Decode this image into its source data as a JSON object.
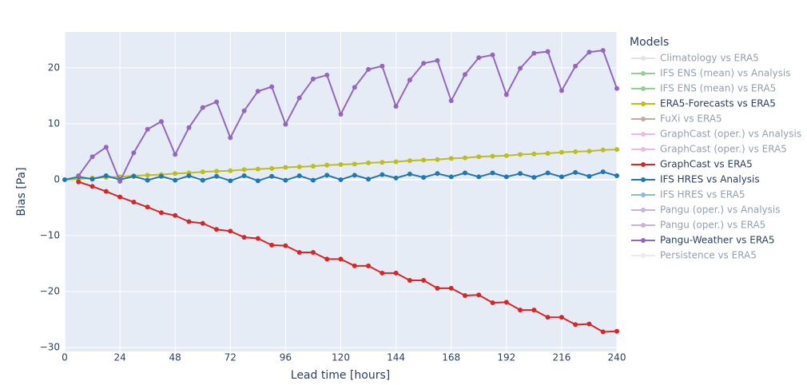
{
  "chart_data": {
    "type": "line",
    "xlabel": "Lead time [hours]",
    "ylabel": "Bias [Pa]",
    "legend_title": "Models",
    "legend_position": "right",
    "grid": true,
    "x": [
      0,
      6,
      12,
      18,
      24,
      30,
      36,
      42,
      48,
      54,
      60,
      66,
      72,
      78,
      84,
      90,
      96,
      102,
      108,
      114,
      120,
      126,
      132,
      138,
      144,
      150,
      156,
      162,
      168,
      174,
      180,
      186,
      192,
      198,
      204,
      210,
      216,
      222,
      228,
      234,
      240
    ],
    "xlim": [
      0,
      240
    ],
    "xticks": [
      0,
      24,
      48,
      72,
      96,
      120,
      144,
      168,
      192,
      216,
      240
    ],
    "ylim": [
      -30.7,
      26.4
    ],
    "yticks": [
      {
        "value": -30,
        "label": "−30"
      },
      {
        "value": -20,
        "label": "−20"
      },
      {
        "value": -10,
        "label": "−10"
      },
      0,
      10,
      20
    ],
    "series": [
      {
        "name": "Climatology vs ERA5",
        "color": "#c7c7c7",
        "visible": false
      },
      {
        "name": "IFS ENS (mean) vs Analysis",
        "color": "#2ca02c",
        "visible": false
      },
      {
        "name": "IFS ENS (mean) vs ERA5",
        "color": "#2ca02c",
        "visible": false
      },
      {
        "name": "ERA5-Forecasts vs ERA5",
        "color": "#bcbd22",
        "visible": true,
        "values": [
          0,
          0.1,
          0.3,
          0.4,
          0.5,
          0.7,
          0.8,
          0.9,
          1.1,
          1.2,
          1.4,
          1.5,
          1.6,
          1.8,
          1.9,
          2.0,
          2.2,
          2.3,
          2.4,
          2.6,
          2.7,
          2.8,
          3.0,
          3.1,
          3.2,
          3.4,
          3.5,
          3.6,
          3.8,
          3.9,
          4.1,
          4.2,
          4.3,
          4.5,
          4.6,
          4.7,
          4.9,
          5.0,
          5.1,
          5.3,
          5.4
        ]
      },
      {
        "name": "FuXi vs ERA5",
        "color": "#8c564b",
        "visible": false
      },
      {
        "name": "GraphCast (oper.) vs Analysis",
        "color": "#e377c2",
        "visible": false
      },
      {
        "name": "GraphCast (oper.) vs ERA5",
        "color": "#e377c2",
        "visible": false
      },
      {
        "name": "GraphCast vs ERA5",
        "color": "#d62728",
        "visible": true,
        "values": [
          null,
          -0.4,
          -1.2,
          -2.1,
          -3.1,
          -4.0,
          -4.9,
          -5.9,
          -6.4,
          -7.5,
          -7.8,
          -8.9,
          -9.2,
          -10.3,
          -10.5,
          -11.7,
          -11.8,
          -13.0,
          -13.0,
          -14.2,
          -14.2,
          -15.4,
          -15.4,
          -16.7,
          -16.7,
          -18.0,
          -18.0,
          -19.4,
          -19.4,
          -20.7,
          -20.6,
          -22.0,
          -21.9,
          -23.3,
          -23.3,
          -24.6,
          -24.6,
          -25.9,
          -25.8,
          -27.2,
          -27.1
        ]
      },
      {
        "name": "IFS HRES vs Analysis",
        "color": "#1f77b4",
        "visible": true,
        "values": [
          0,
          0.5,
          0.1,
          0.7,
          0.0,
          0.6,
          -0.1,
          0.6,
          -0.1,
          0.7,
          -0.1,
          0.6,
          -0.2,
          0.7,
          -0.2,
          0.6,
          -0.1,
          0.7,
          -0.1,
          0.8,
          0.0,
          0.8,
          0.1,
          0.9,
          0.3,
          1.0,
          0.4,
          1.1,
          0.5,
          1.2,
          0.5,
          1.2,
          0.5,
          1.1,
          0.4,
          1.2,
          0.5,
          1.3,
          0.6,
          1.4,
          0.7
        ]
      },
      {
        "name": "IFS HRES vs ERA5",
        "color": "#1f77b4",
        "visible": false
      },
      {
        "name": "Pangu (oper.) vs Analysis",
        "color": "#9467bd",
        "visible": false
      },
      {
        "name": "Pangu (oper.) vs ERA5",
        "color": "#9467bd",
        "visible": false
      },
      {
        "name": "Pangu-Weather vs ERA5",
        "color": "#9467bd",
        "visible": true,
        "values": [
          null,
          0.7,
          4.1,
          5.8,
          -0.3,
          4.8,
          9.0,
          10.4,
          4.5,
          9.3,
          12.9,
          13.9,
          7.5,
          12.3,
          15.8,
          16.6,
          9.9,
          14.6,
          18.0,
          18.7,
          11.7,
          16.5,
          19.7,
          20.3,
          13.1,
          17.8,
          20.8,
          21.3,
          14.1,
          18.8,
          21.8,
          22.3,
          15.2,
          19.9,
          22.6,
          22.9,
          15.9,
          20.3,
          22.8,
          23.1,
          16.3
        ]
      },
      {
        "name": "Persistence vs ERA5",
        "color": "#d9d9d9",
        "visible": false
      }
    ]
  }
}
